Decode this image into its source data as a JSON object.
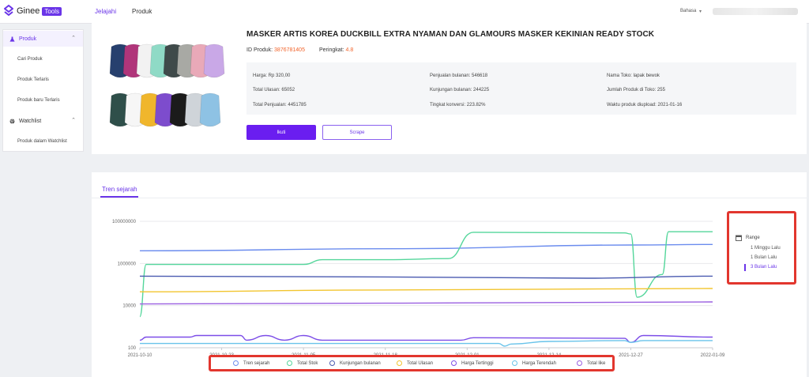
{
  "app": {
    "logo_text": "Ginee",
    "logo_badge": "Tools"
  },
  "nav": {
    "tabs": [
      {
        "label": "Jelajahi",
        "active": true
      },
      {
        "label": "Produk",
        "active": false
      }
    ],
    "language": "Bahasa"
  },
  "sidebar": {
    "groups": [
      {
        "label": "Produk",
        "icon": "flask-icon",
        "expanded": true,
        "items": [
          "Cari Produk",
          "Produk Terlaris",
          "Produk baru Terlaris"
        ]
      },
      {
        "label": "Watchlist",
        "icon": "globe-icon",
        "expanded": true,
        "items": [
          "Produk dalam Watchlist"
        ]
      }
    ]
  },
  "product": {
    "title": "MASKER ARTIS KOREA DUCKBILL EXTRA NYAMAN DAN GLAMOURS MASKER KEKINIAN READY STOCK",
    "id_label": "ID Produk:",
    "id_value": "3876781405",
    "rating_label": "Peringkat:",
    "rating_value": "4.8",
    "image_colors": [
      "#27406e",
      "#b0357a",
      "#f2f2f2",
      "#8fdac6",
      "#3f4a4a",
      "#a8a9a4",
      "#e9a9b8",
      "#c9a8e7",
      "#2f4f4a",
      "#f6f6f6",
      "#f0b62c",
      "#7d4ccd",
      "#1b1b1b",
      "#cfd4d9",
      "#8ec2e4"
    ],
    "info": {
      "col1": [
        "Harga: Rp 320,00",
        "Total Ulasan: 65052",
        "Total Penjualan: 4451785"
      ],
      "col2": [
        "Penjualan bulanan: 546618",
        "Kunjungan bulanan: 244225",
        "Tingkat konversi: 223.82%"
      ],
      "col3": [
        "Nama Toko: lapak bewok",
        "Jumlah Produk di Toko: 255",
        "Waktu produk diupload: 2021-01-16"
      ]
    },
    "follow_button": "Ikuti",
    "scrape_button": "Scrape"
  },
  "trend": {
    "tab_label": "Tren sejarah",
    "range": {
      "title": "Range",
      "options": [
        "1 Minggu Lalu",
        "1 Bulan Lalu",
        "3 Bulan Lalu"
      ],
      "selected": "3 Bulan Lalu"
    }
  },
  "chart_data": {
    "type": "line",
    "y_scale": "log",
    "ylim": [
      100,
      100000000
    ],
    "y_ticks": [
      "100000000",
      "1000000",
      "10000",
      "100"
    ],
    "x_range": [
      "2021-10-10",
      "2022-01-09"
    ],
    "x_ticks": [
      "2021-10-10",
      "2021-10-23",
      "2021-11-05",
      "2021-11-18",
      "2021-12-01",
      "2021-12-14",
      "2021-12-27",
      "2022-01-09"
    ],
    "grid": true,
    "legend_position": "bottom",
    "series": [
      {
        "name": "Tren sejarah",
        "color": "#6b8cee",
        "points": [
          [
            "2021-10-10",
            4000000
          ],
          [
            "2021-11-20",
            5000000
          ],
          [
            "2021-12-27",
            7500000
          ],
          [
            "2022-01-09",
            8000000
          ]
        ]
      },
      {
        "name": "Total Stok",
        "color": "#54d69b",
        "points": [
          [
            "2021-10-10",
            3000
          ],
          [
            "2021-10-11",
            900000
          ],
          [
            "2021-10-30",
            900000
          ],
          [
            "2021-11-05",
            900000
          ],
          [
            "2021-11-08",
            1500000
          ],
          [
            "2021-11-18",
            1500000
          ],
          [
            "2021-11-28",
            1700000
          ],
          [
            "2021-12-02",
            30000000
          ],
          [
            "2021-12-26",
            28000000
          ],
          [
            "2021-12-27",
            25000000
          ],
          [
            "2021-12-28",
            25000
          ],
          [
            "2022-01-01",
            300000
          ],
          [
            "2022-01-02",
            32000000
          ],
          [
            "2022-01-09",
            32000000
          ]
        ]
      },
      {
        "name": "Kunjungan bulanan",
        "color": "#4a5ab0",
        "points": [
          [
            "2021-10-10",
            250000
          ],
          [
            "2021-11-18",
            230000
          ],
          [
            "2021-12-20",
            200000
          ],
          [
            "2022-01-09",
            250000
          ]
        ]
      },
      {
        "name": "Total Ulasan",
        "color": "#f2c52f",
        "points": [
          [
            "2021-10-10",
            45000
          ],
          [
            "2021-11-18",
            55000
          ],
          [
            "2021-12-14",
            60000
          ],
          [
            "2022-01-09",
            65052
          ]
        ]
      },
      {
        "name": "Harga Tertinggi",
        "color": "#7d4ee8",
        "points": [
          [
            "2021-10-10",
            230
          ],
          [
            "2021-10-11",
            320
          ],
          [
            "2021-10-18",
            320
          ],
          [
            "2021-10-19",
            380
          ],
          [
            "2021-10-26",
            380
          ],
          [
            "2021-10-27",
            230
          ],
          [
            "2021-10-30",
            380
          ],
          [
            "2021-11-02",
            230
          ],
          [
            "2021-11-05",
            380
          ],
          [
            "2021-11-08",
            230
          ],
          [
            "2021-11-30",
            230
          ],
          [
            "2021-12-02",
            300
          ],
          [
            "2021-12-26",
            280
          ],
          [
            "2021-12-27",
            180
          ],
          [
            "2021-12-29",
            380
          ],
          [
            "2022-01-09",
            320
          ]
        ]
      },
      {
        "name": "Harga Terendah",
        "color": "#69c3ea",
        "points": [
          [
            "2021-10-10",
            160
          ],
          [
            "2021-12-06",
            160
          ],
          [
            "2021-12-07",
            120
          ],
          [
            "2021-12-08",
            150
          ],
          [
            "2021-12-14",
            200
          ],
          [
            "2021-12-26",
            220
          ],
          [
            "2021-12-27",
            180
          ],
          [
            "2021-12-29",
            220
          ],
          [
            "2022-01-09",
            220
          ]
        ]
      },
      {
        "name": "Total like",
        "color": "#9a5fe0",
        "points": [
          [
            "2021-10-10",
            12000
          ],
          [
            "2021-11-18",
            13000
          ],
          [
            "2021-12-14",
            14000
          ],
          [
            "2022-01-09",
            15000
          ]
        ]
      }
    ]
  }
}
